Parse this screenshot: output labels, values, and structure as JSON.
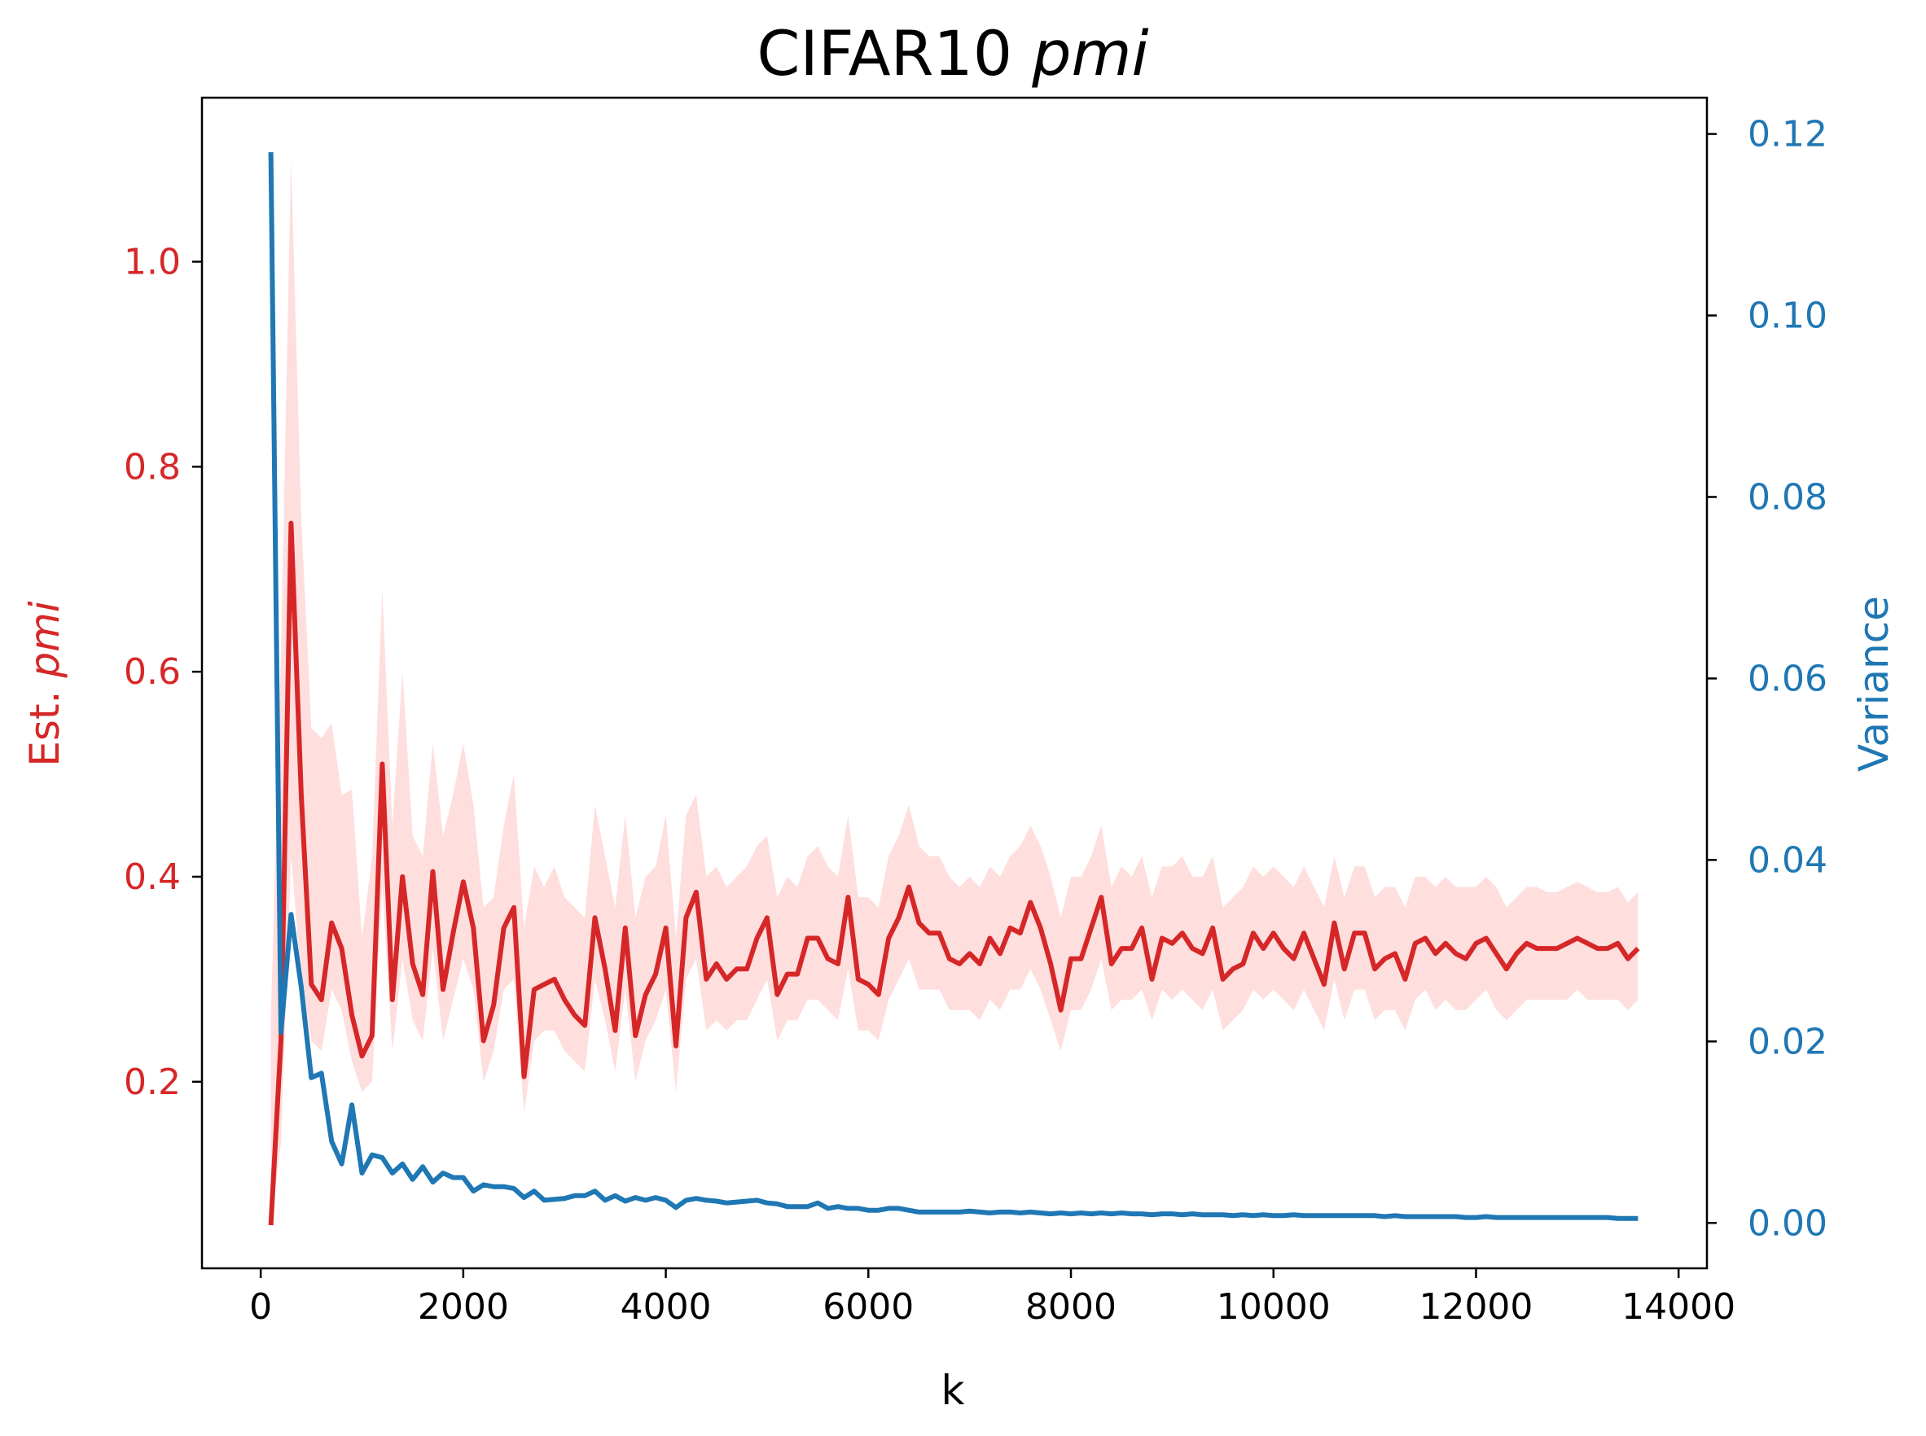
{
  "chart_data": {
    "type": "line",
    "title": "CIFAR10 ",
    "title_italic": "pmi",
    "xlabel": "k",
    "ylabel_left_prefix": "Est. ",
    "ylabel_left_italic": "pmi",
    "ylabel_right": "Variance",
    "x_ticks": [
      0,
      2000,
      4000,
      6000,
      8000,
      10000,
      12000,
      14000
    ],
    "y_left_ticks": [
      0.2,
      0.4,
      0.6,
      0.8,
      1.0
    ],
    "y_right_ticks": [
      0.0,
      0.02,
      0.04,
      0.06,
      0.08,
      0.1,
      0.12
    ],
    "xlim": [
      -580,
      14280
    ],
    "ylim_left": [
      0.018,
      1.16
    ],
    "ylim_right": [
      -0.005,
      0.124
    ],
    "colors": {
      "estimate": "#d62728",
      "band": "#ffdede",
      "variance": "#1f77b4",
      "axis": "#000000"
    },
    "x": [
      100,
      200,
      300,
      400,
      500,
      600,
      700,
      800,
      900,
      1000,
      1100,
      1200,
      1300,
      1400,
      1500,
      1600,
      1700,
      1800,
      1900,
      2000,
      2100,
      2200,
      2300,
      2400,
      2500,
      2600,
      2700,
      2800,
      2900,
      3000,
      3100,
      3200,
      3300,
      3400,
      3500,
      3600,
      3700,
      3800,
      3900,
      4000,
      4100,
      4200,
      4300,
      4400,
      4500,
      4600,
      4700,
      4800,
      4900,
      5000,
      5100,
      5200,
      5300,
      5400,
      5500,
      5600,
      5700,
      5800,
      5900,
      6000,
      6100,
      6200,
      6300,
      6400,
      6500,
      6600,
      6700,
      6800,
      6900,
      7000,
      7100,
      7200,
      7300,
      7400,
      7500,
      7600,
      7700,
      7800,
      7900,
      8000,
      8100,
      8200,
      8300,
      8400,
      8500,
      8600,
      8700,
      8800,
      8900,
      9000,
      9100,
      9200,
      9300,
      9400,
      9500,
      9600,
      9700,
      9800,
      9900,
      10000,
      10100,
      10200,
      10300,
      10400,
      10500,
      10600,
      10700,
      10800,
      10900,
      11000,
      11100,
      11200,
      11300,
      11400,
      11500,
      11600,
      11700,
      11800,
      11900,
      12000,
      12100,
      12200,
      12300,
      12400,
      12500,
      12600,
      12700,
      12800,
      12900,
      13000,
      13100,
      13200,
      13300,
      13400,
      13500,
      13600
    ],
    "series": [
      {
        "values": [
          0.06,
          0.24,
          0.745,
          0.48,
          0.295,
          0.28,
          0.355,
          0.33,
          0.265,
          0.225,
          0.245,
          0.51,
          0.28,
          0.4,
          0.315,
          0.285,
          0.405,
          0.29,
          0.345,
          0.395,
          0.35,
          0.24,
          0.275,
          0.35,
          0.37,
          0.205,
          0.29,
          0.295,
          0.3,
          0.28,
          0.265,
          0.255,
          0.36,
          0.31,
          0.25,
          0.35,
          0.245,
          0.285,
          0.305,
          0.35,
          0.235,
          0.36,
          0.385,
          0.3,
          0.315,
          0.3,
          0.31,
          0.31,
          0.34,
          0.36,
          0.285,
          0.305,
          0.305,
          0.34,
          0.34,
          0.32,
          0.315,
          0.38,
          0.3,
          0.295,
          0.285,
          0.34,
          0.36,
          0.39,
          0.355,
          0.345,
          0.345,
          0.32,
          0.315,
          0.325,
          0.315,
          0.34,
          0.325,
          0.35,
          0.345,
          0.375,
          0.35,
          0.315,
          0.27,
          0.32,
          0.32,
          0.35,
          0.38,
          0.315,
          0.33,
          0.33,
          0.35,
          0.3,
          0.34,
          0.335,
          0.345,
          0.33,
          0.325,
          0.35,
          0.3,
          0.31,
          0.315,
          0.345,
          0.33,
          0.345,
          0.33,
          0.32,
          0.345,
          0.32,
          0.295,
          0.355,
          0.31,
          0.345,
          0.345,
          0.31,
          0.32,
          0.325,
          0.3,
          0.335,
          0.34,
          0.325,
          0.335,
          0.325,
          0.32,
          0.335,
          0.34,
          0.325,
          0.31,
          0.325,
          0.335,
          0.33,
          0.33,
          0.33,
          0.335,
          0.34,
          0.335,
          0.33,
          0.33,
          0.335,
          0.32,
          0.33
        ]
      },
      {
        "values": [
          0.118,
          0.021,
          0.034,
          0.026,
          0.016,
          0.0165,
          0.009,
          0.0065,
          0.013,
          0.0055,
          0.0075,
          0.0072,
          0.0055,
          0.0065,
          0.0048,
          0.0062,
          0.0045,
          0.0055,
          0.005,
          0.005,
          0.0035,
          0.0042,
          0.004,
          0.004,
          0.0038,
          0.0028,
          0.0035,
          0.0025,
          0.0026,
          0.0027,
          0.003,
          0.003,
          0.0035,
          0.0025,
          0.003,
          0.0024,
          0.0028,
          0.0025,
          0.0028,
          0.0025,
          0.0017,
          0.0025,
          0.0027,
          0.0025,
          0.0024,
          0.0022,
          0.0023,
          0.0024,
          0.0025,
          0.0022,
          0.0021,
          0.0018,
          0.0018,
          0.0018,
          0.0022,
          0.0016,
          0.0018,
          0.0016,
          0.0016,
          0.0014,
          0.0014,
          0.0016,
          0.0016,
          0.0014,
          0.0012,
          0.0012,
          0.0012,
          0.0012,
          0.0012,
          0.0013,
          0.0012,
          0.0011,
          0.0012,
          0.0012,
          0.0011,
          0.0012,
          0.0011,
          0.001,
          0.0011,
          0.001,
          0.0011,
          0.001,
          0.0011,
          0.001,
          0.0011,
          0.001,
          0.001,
          0.0009,
          0.001,
          0.001,
          0.0009,
          0.001,
          0.0009,
          0.0009,
          0.0009,
          0.0008,
          0.0009,
          0.0008,
          0.0009,
          0.0008,
          0.0008,
          0.0009,
          0.0008,
          0.0008,
          0.0008,
          0.0008,
          0.0008,
          0.0008,
          0.0008,
          0.0008,
          0.0007,
          0.0008,
          0.0007,
          0.0007,
          0.0007,
          0.0007,
          0.0007,
          0.0007,
          0.0006,
          0.0006,
          0.0007,
          0.0006,
          0.0006,
          0.0006,
          0.0006,
          0.0006,
          0.0006,
          0.0006,
          0.0006,
          0.0006,
          0.0006,
          0.0006,
          0.0006,
          0.0005,
          0.0005,
          0.0005
        ]
      }
    ],
    "band_upper": [
      0.26,
      0.62,
      1.1,
      0.75,
      0.545,
      0.535,
      0.55,
      0.48,
      0.485,
      0.34,
      0.42,
      0.68,
      0.45,
      0.6,
      0.44,
      0.42,
      0.53,
      0.44,
      0.48,
      0.53,
      0.47,
      0.37,
      0.38,
      0.45,
      0.5,
      0.35,
      0.41,
      0.39,
      0.41,
      0.38,
      0.37,
      0.36,
      0.47,
      0.42,
      0.37,
      0.46,
      0.36,
      0.4,
      0.41,
      0.46,
      0.34,
      0.46,
      0.48,
      0.4,
      0.41,
      0.39,
      0.4,
      0.41,
      0.43,
      0.44,
      0.38,
      0.4,
      0.39,
      0.42,
      0.43,
      0.41,
      0.4,
      0.46,
      0.38,
      0.38,
      0.37,
      0.42,
      0.44,
      0.47,
      0.43,
      0.42,
      0.42,
      0.4,
      0.39,
      0.4,
      0.39,
      0.41,
      0.4,
      0.42,
      0.43,
      0.45,
      0.43,
      0.4,
      0.36,
      0.4,
      0.4,
      0.42,
      0.45,
      0.39,
      0.41,
      0.4,
      0.42,
      0.38,
      0.41,
      0.41,
      0.42,
      0.4,
      0.4,
      0.42,
      0.37,
      0.38,
      0.39,
      0.41,
      0.4,
      0.41,
      0.4,
      0.39,
      0.41,
      0.39,
      0.37,
      0.42,
      0.38,
      0.41,
      0.41,
      0.38,
      0.39,
      0.39,
      0.37,
      0.4,
      0.4,
      0.39,
      0.4,
      0.39,
      0.39,
      0.39,
      0.4,
      0.39,
      0.37,
      0.38,
      0.39,
      0.39,
      0.385,
      0.385,
      0.39,
      0.395,
      0.39,
      0.385,
      0.385,
      0.39,
      0.375,
      0.385
    ],
    "band_lower": [
      0.06,
      0.14,
      0.42,
      0.3,
      0.24,
      0.23,
      0.29,
      0.27,
      0.22,
      0.19,
      0.2,
      0.39,
      0.23,
      0.32,
      0.26,
      0.24,
      0.33,
      0.24,
      0.28,
      0.32,
      0.29,
      0.2,
      0.23,
      0.29,
      0.3,
      0.17,
      0.24,
      0.25,
      0.25,
      0.23,
      0.22,
      0.21,
      0.3,
      0.26,
      0.21,
      0.29,
      0.2,
      0.24,
      0.26,
      0.29,
      0.19,
      0.3,
      0.32,
      0.25,
      0.26,
      0.25,
      0.26,
      0.26,
      0.28,
      0.3,
      0.24,
      0.26,
      0.26,
      0.28,
      0.28,
      0.27,
      0.26,
      0.31,
      0.25,
      0.25,
      0.24,
      0.28,
      0.3,
      0.32,
      0.29,
      0.29,
      0.29,
      0.27,
      0.27,
      0.27,
      0.26,
      0.28,
      0.27,
      0.29,
      0.29,
      0.31,
      0.29,
      0.26,
      0.23,
      0.27,
      0.27,
      0.29,
      0.32,
      0.27,
      0.28,
      0.28,
      0.29,
      0.26,
      0.29,
      0.28,
      0.29,
      0.28,
      0.27,
      0.29,
      0.25,
      0.26,
      0.27,
      0.29,
      0.28,
      0.29,
      0.28,
      0.27,
      0.29,
      0.27,
      0.25,
      0.3,
      0.26,
      0.29,
      0.29,
      0.26,
      0.27,
      0.27,
      0.25,
      0.28,
      0.29,
      0.27,
      0.28,
      0.27,
      0.27,
      0.28,
      0.29,
      0.27,
      0.26,
      0.27,
      0.28,
      0.28,
      0.28,
      0.28,
      0.28,
      0.29,
      0.28,
      0.28,
      0.28,
      0.28,
      0.27,
      0.28
    ]
  }
}
